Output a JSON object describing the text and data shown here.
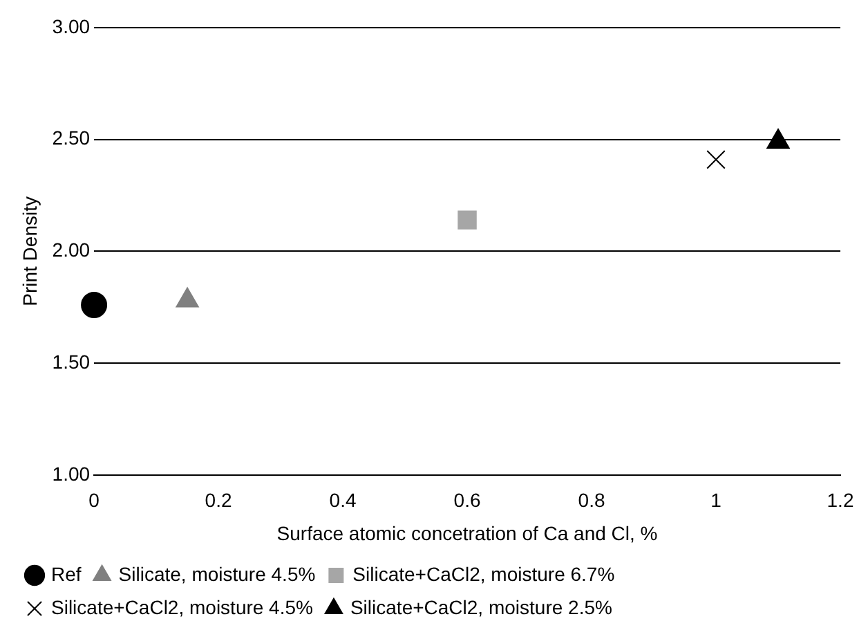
{
  "chart_data": {
    "type": "scatter",
    "xlabel": "Surface atomic concetration of Ca and Cl, %",
    "ylabel": "Print Density",
    "xlim": [
      0,
      1.2
    ],
    "xticks": [
      0,
      0.2,
      0.4,
      0.6,
      0.8,
      1,
      1.2
    ],
    "ylim": [
      1,
      3
    ],
    "yticks": [
      {
        "value": 1,
        "label": "1.00"
      },
      {
        "value": 1.5,
        "label": "1.50"
      },
      {
        "value": 2,
        "label": "2.00"
      },
      {
        "value": 2.5,
        "label": "2.50"
      },
      {
        "value": 3,
        "label": "3.00"
      }
    ],
    "grid": "y",
    "legend": "bottom",
    "series": [
      {
        "name": "Ref",
        "color": "#000000",
        "marker": "circle",
        "x": [
          0
        ],
        "values": [
          1.76
        ]
      },
      {
        "name": "Silicate, moisture 4.5%",
        "color": "#808080",
        "marker": "triangle",
        "x": [
          0.15
        ],
        "values": [
          1.78
        ]
      },
      {
        "name": "Silicate+CaCl2, moisture 6.7%",
        "color": "#a6a6a6",
        "marker": "square",
        "x": [
          0.6
        ],
        "values": [
          2.14
        ]
      },
      {
        "name": "Silicate+CaCl2, moisture 4.5%",
        "color": "#000000",
        "marker": "cross",
        "x": [
          1
        ],
        "values": [
          2.41
        ]
      },
      {
        "name": "Silicate+CaCl2, moisture 2.5%",
        "color": "#000000",
        "marker": "triangle",
        "x": [
          1.1
        ],
        "values": [
          2.49
        ]
      }
    ]
  }
}
